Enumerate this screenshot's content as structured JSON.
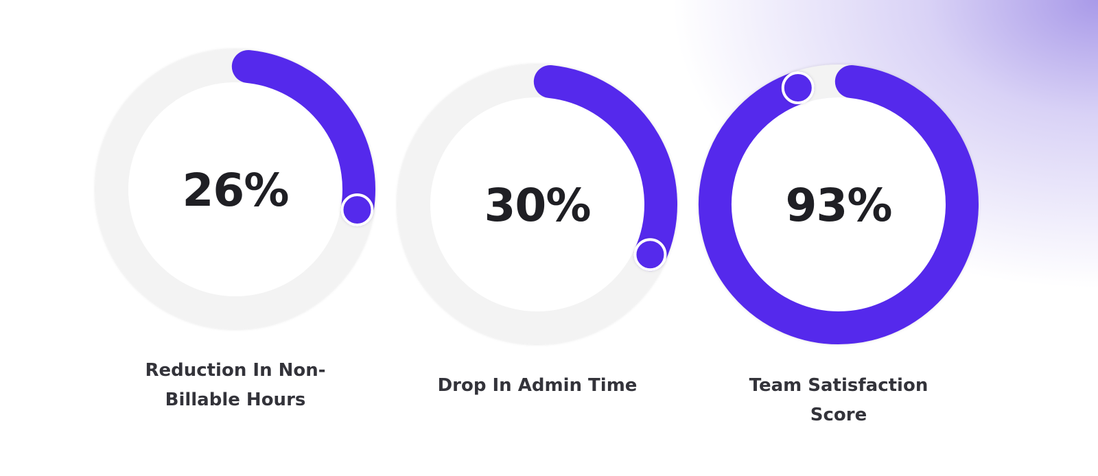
{
  "chart_data": [
    {
      "type": "progress-ring",
      "value": 26,
      "value_label": "26%",
      "label": "Reduction In Non-Billable Hours",
      "ylim": [
        0,
        100
      ],
      "color": "#5529ec"
    },
    {
      "type": "progress-ring",
      "value": 30,
      "value_label": "30%",
      "label": "Drop In Admin Time",
      "ylim": [
        0,
        100
      ],
      "color": "#5529ec"
    },
    {
      "type": "progress-ring",
      "value": 93,
      "value_label": "93%",
      "label": "Team Satisfaction Score",
      "ylim": [
        0,
        100
      ],
      "color": "#5529ec"
    }
  ]
}
